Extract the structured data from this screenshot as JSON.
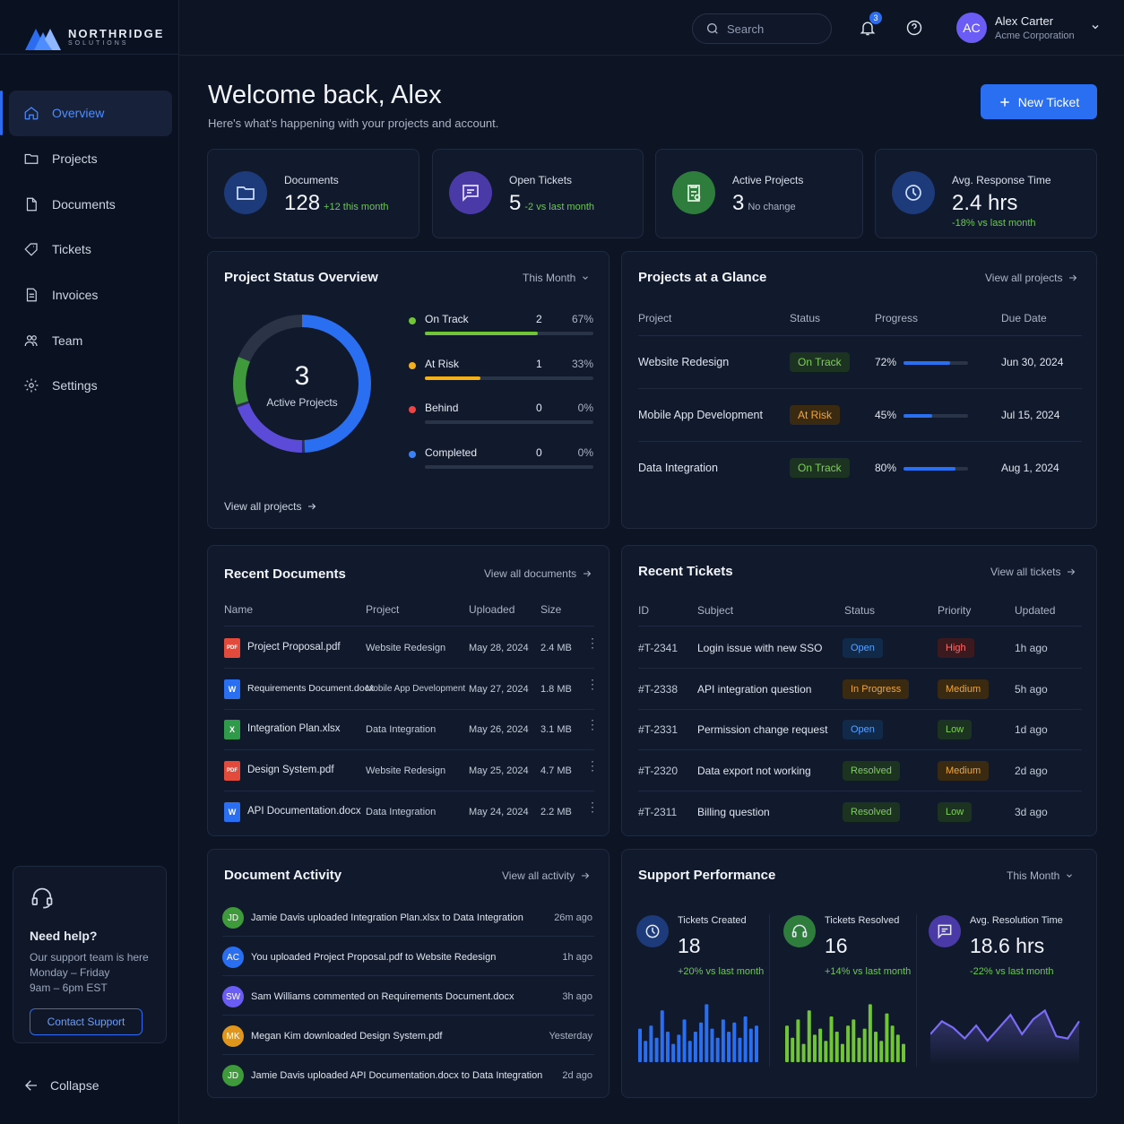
{
  "brand": {
    "name": "NORTHRIDGE",
    "sub": "SOLUTIONS"
  },
  "nav": [
    {
      "label": "Overview",
      "icon": "home-icon",
      "active": true
    },
    {
      "label": "Projects",
      "icon": "folder-icon"
    },
    {
      "label": "Documents",
      "icon": "document-icon"
    },
    {
      "label": "Tickets",
      "icon": "ticket-icon"
    },
    {
      "label": "Invoices",
      "icon": "invoice-icon"
    },
    {
      "label": "Team",
      "icon": "team-icon"
    },
    {
      "label": "Settings",
      "icon": "gear-icon"
    }
  ],
  "help": {
    "title": "Need help?",
    "line1": "Our support team is here",
    "line2": "Monday – Friday",
    "line3": "9am – 6pm EST",
    "button": "Contact Support"
  },
  "collapse": "Collapse",
  "topbar": {
    "search_placeholder": "Search",
    "notifications": "3",
    "user": {
      "initials": "AC",
      "name": "Alex Carter",
      "org": "Acme Corporation"
    }
  },
  "header": {
    "title": "Welcome back, Alex",
    "subtitle": "Here's what's happening with your projects and account.",
    "new_ticket": "New Ticket"
  },
  "stats": [
    {
      "label": "Documents",
      "value": "128",
      "delta": "+12 this month",
      "delta_color": "#6fc55a",
      "icon": "folder-icon",
      "bg": "#1d3a7a",
      "fg": "#cfe0ff"
    },
    {
      "label": "Open Tickets",
      "value": "5",
      "delta": "-2 vs last month",
      "delta_color": "#6fc55a",
      "icon": "chat-icon",
      "bg": "#4a3aa8",
      "fg": "#e3dcff"
    },
    {
      "label": "Active Projects",
      "value": "3",
      "delta": "No change",
      "delta_color": "#aab4c5",
      "icon": "clipboard-icon",
      "bg": "#2e7d3c",
      "fg": "#dff5e0"
    },
    {
      "label": "Avg. Response Time",
      "value": "2.4 hrs",
      "delta": "-18% vs last month",
      "delta_color": "#6fc55a",
      "icon": "clock-icon",
      "bg": "#1d3a7a",
      "fg": "#cfe0ff"
    }
  ],
  "status_overview": {
    "title": "Project Status Overview",
    "period": "This Month",
    "center_value": "3",
    "center_label": "Active Projects",
    "link": "View all projects",
    "items": [
      {
        "label": "On Track",
        "count": "2",
        "pct": "67%",
        "fraction": 0.67,
        "color": "#6fc535"
      },
      {
        "label": "At Risk",
        "count": "1",
        "pct": "33%",
        "fraction": 0.33,
        "color": "#f2b01e"
      },
      {
        "label": "Behind",
        "count": "0",
        "pct": "0%",
        "fraction": 0,
        "color": "#ef4444"
      },
      {
        "label": "Completed",
        "count": "0",
        "pct": "0%",
        "fraction": 0,
        "color": "#3b82f6"
      }
    ]
  },
  "projects": {
    "title": "Projects at a Glance",
    "link": "View all projects",
    "headers": [
      "Project",
      "Status",
      "Progress",
      "Due Date"
    ],
    "rows": [
      {
        "name": "Website Redesign",
        "status": "On Track",
        "status_type": "green",
        "progress": "72%",
        "fraction": 0.72,
        "due": "Jun 30, 2024"
      },
      {
        "name": "Mobile App Development",
        "status": "At Risk",
        "status_type": "orange",
        "progress": "45%",
        "fraction": 0.45,
        "due": "Jul 15, 2024"
      },
      {
        "name": "Data Integration",
        "status": "On Track",
        "status_type": "green",
        "progress": "80%",
        "fraction": 0.8,
        "due": "Aug 1, 2024"
      }
    ]
  },
  "documents": {
    "title": "Recent Documents",
    "link": "View all documents",
    "headers": [
      "Name",
      "Project",
      "Uploaded",
      "Size"
    ],
    "rows": [
      {
        "name": "Project Proposal.pdf",
        "type": "PDF",
        "project": "Website Redesign",
        "uploaded": "May 28, 2024",
        "size": "2.4 MB"
      },
      {
        "name": "Requirements Document.docx",
        "type": "W",
        "project": "Mobile App Development",
        "uploaded": "May 27, 2024",
        "size": "1.8 MB"
      },
      {
        "name": "Integration Plan.xlsx",
        "type": "X",
        "project": "Data Integration",
        "uploaded": "May 26, 2024",
        "size": "3.1 MB"
      },
      {
        "name": "Design System.pdf",
        "type": "PDF",
        "project": "Website Redesign",
        "uploaded": "May 25, 2024",
        "size": "4.7 MB"
      },
      {
        "name": "API Documentation.docx",
        "type": "W",
        "project": "Data Integration",
        "uploaded": "May 24, 2024",
        "size": "2.2 MB"
      }
    ]
  },
  "tickets": {
    "title": "Recent Tickets",
    "link": "View all tickets",
    "headers": [
      "ID",
      "Subject",
      "Status",
      "Priority",
      "Updated"
    ],
    "rows": [
      {
        "id": "#T-2341",
        "subject": "Login issue with new SSO",
        "status": "Open",
        "status_type": "blue",
        "priority": "High",
        "priority_type": "red",
        "updated": "1h ago"
      },
      {
        "id": "#T-2338",
        "subject": "API integration question",
        "status": "In Progress",
        "status_type": "orange",
        "priority": "Medium",
        "priority_type": "orange",
        "updated": "5h ago"
      },
      {
        "id": "#T-2331",
        "subject": "Permission change request",
        "status": "Open",
        "status_type": "blue",
        "priority": "Low",
        "priority_type": "low",
        "updated": "1d ago"
      },
      {
        "id": "#T-2320",
        "subject": "Data export not working",
        "status": "Resolved",
        "status_type": "green",
        "priority": "Medium",
        "priority_type": "orange",
        "updated": "2d ago"
      },
      {
        "id": "#T-2311",
        "subject": "Billing question",
        "status": "Resolved",
        "status_type": "green",
        "priority": "Low",
        "priority_type": "low",
        "updated": "3d ago"
      }
    ]
  },
  "activity": {
    "title": "Document Activity",
    "link": "View all activity",
    "rows": [
      {
        "initials": "JD",
        "color": "#3f9a3c",
        "text": "Jamie Davis uploaded Integration Plan.xlsx to Data Integration",
        "time": "26m ago"
      },
      {
        "initials": "AC",
        "color": "#2a6ef2",
        "text": "You uploaded Project Proposal.pdf to Website Redesign",
        "time": "1h ago"
      },
      {
        "initials": "SW",
        "color": "#6a5cf5",
        "text": "Sam Williams commented on Requirements Document.docx",
        "time": "3h ago"
      },
      {
        "initials": "MK",
        "color": "#e0961c",
        "text": "Megan Kim downloaded Design System.pdf",
        "time": "Yesterday"
      },
      {
        "initials": "JD",
        "color": "#3f9a3c",
        "text": "Jamie Davis uploaded API Documentation.docx to Data Integration",
        "time": "2d ago"
      }
    ]
  },
  "support": {
    "title": "Support Performance",
    "period": "This Month",
    "metrics": [
      {
        "label": "Tickets Created",
        "value": "18",
        "delta": "+20% vs last month",
        "delta_color": "#6fc55a",
        "icon": "clock-icon",
        "bg": "#1d3a7a",
        "chart": "bars",
        "bar_color": "#2a6ef2",
        "series": [
          0.55,
          0.35,
          0.6,
          0.4,
          0.85,
          0.5,
          0.3,
          0.45,
          0.7,
          0.35,
          0.5,
          0.65,
          0.95,
          0.55,
          0.4,
          0.7,
          0.5,
          0.65,
          0.4,
          0.75,
          0.55,
          0.6
        ]
      },
      {
        "label": "Tickets Resolved",
        "value": "16",
        "delta": "+14% vs last month",
        "delta_color": "#6fc55a",
        "icon": "headset-icon",
        "bg": "#2e7d3c",
        "chart": "bars",
        "bar_color": "#6fc535",
        "series": [
          0.6,
          0.4,
          0.7,
          0.3,
          0.85,
          0.45,
          0.55,
          0.35,
          0.75,
          0.5,
          0.3,
          0.6,
          0.7,
          0.4,
          0.55,
          0.95,
          0.5,
          0.35,
          0.8,
          0.6,
          0.45,
          0.3
        ]
      },
      {
        "label": "Avg. Resolution Time",
        "value": "18.6 hrs",
        "delta": "-22% vs last month",
        "delta_color": "#6fc55a",
        "icon": "chat-icon",
        "bg": "#4a3aa8",
        "chart": "line",
        "line_color": "#7c6cf5",
        "series": [
          0.4,
          0.7,
          0.55,
          0.3,
          0.6,
          0.25,
          0.55,
          0.85,
          0.4,
          0.75,
          0.95,
          0.35,
          0.3,
          0.7
        ]
      }
    ]
  }
}
